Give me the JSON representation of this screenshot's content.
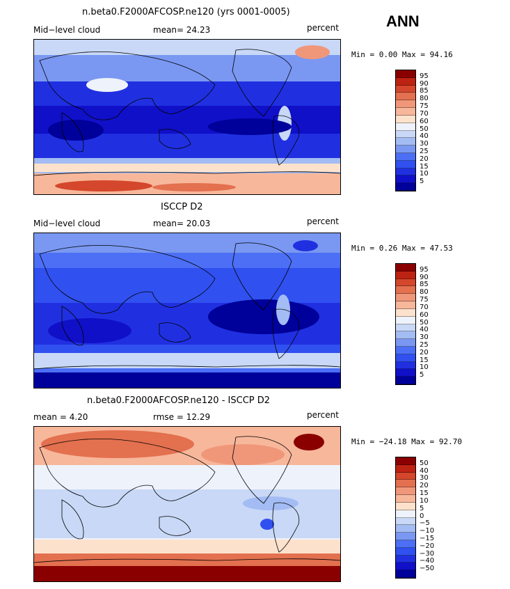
{
  "season": "ANN",
  "colors": {
    "seq": [
      "#00009a",
      "#1010c8",
      "#2030e0",
      "#3050f0",
      "#4c6ff5",
      "#7a98f2",
      "#a3bcf3",
      "#c8d8f6",
      "#eef2fb",
      "#fce2cc",
      "#f7b79b",
      "#f0977a",
      "#e3704f",
      "#d4472c",
      "#bd2312",
      "#8a0000"
    ],
    "diff": [
      "#00009a",
      "#1010c8",
      "#2030e0",
      "#3050f0",
      "#4c6ff5",
      "#7a98f2",
      "#a3bcf3",
      "#c8d8f6",
      "#eef2fb",
      "#fce2cc",
      "#f7b79b",
      "#f0977a",
      "#e3704f",
      "#d4472c",
      "#bd2312",
      "#8a0000"
    ]
  },
  "panels": [
    {
      "title": "n.beta0.F2000AFCOSP.ne120 (yrs 0001-0005)",
      "left_label": "Mid−level cloud",
      "center_label": "mean=  24.23",
      "right_label": "percent",
      "minmax": "Min =   0.00 Max =  94.16",
      "colorbar_labels": [
        "95",
        "90",
        "85",
        "80",
        "75",
        "70",
        "60",
        "50",
        "40",
        "30",
        "25",
        "20",
        "15",
        "10",
        "5"
      ]
    },
    {
      "title": "ISCCP D2",
      "left_label": "Mid−level cloud",
      "center_label": "mean=  20.03",
      "right_label": "percent",
      "minmax": "Min =   0.26 Max =  47.53",
      "colorbar_labels": [
        "95",
        "90",
        "85",
        "80",
        "75",
        "70",
        "60",
        "50",
        "40",
        "30",
        "25",
        "20",
        "15",
        "10",
        "5"
      ]
    },
    {
      "title": "n.beta0.F2000AFCOSP.ne120 - ISCCP D2",
      "left_label": "mean =   4.20",
      "center_label": "rmse =  12.29",
      "right_label": "percent",
      "minmax": "Min = −24.18 Max =  92.70",
      "colorbar_labels": [
        "50",
        "40",
        "30",
        "20",
        "15",
        "10",
        "5",
        "0",
        "−5",
        "−10",
        "−15",
        "−20",
        "−30",
        "−40",
        "−50"
      ]
    }
  ]
}
